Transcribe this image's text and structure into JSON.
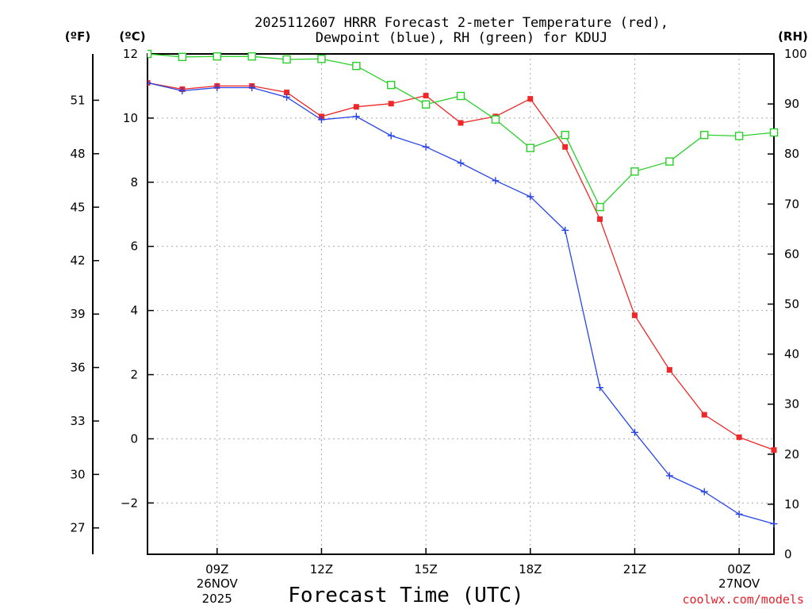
{
  "chart_data": {
    "type": "line",
    "title_line1": "2025112607 HRRR Forecast 2-meter Temperature (red),",
    "title_line2": "Dewpoint (blue), RH (green) for KDUJ",
    "unit_left_f": "(ºF)",
    "unit_left_c": "(ºC)",
    "unit_right": "(RH)",
    "xlabel": "Forecast Time (UTC)",
    "credit": "coolwx.com/models",
    "x_hours": [
      7,
      8,
      9,
      10,
      11,
      12,
      13,
      14,
      15,
      16,
      17,
      18,
      19,
      20,
      21,
      22,
      23,
      24,
      25
    ],
    "xlim": [
      7,
      25
    ],
    "x_ticks": [
      {
        "hour": 9,
        "label": "09Z",
        "date": "26NOV",
        "year": "2025"
      },
      {
        "hour": 12,
        "label": "12Z",
        "date": "",
        "year": ""
      },
      {
        "hour": 15,
        "label": "15Z",
        "date": "",
        "year": ""
      },
      {
        "hour": 18,
        "label": "18Z",
        "date": "",
        "year": ""
      },
      {
        "hour": 21,
        "label": "21Z",
        "date": "",
        "year": ""
      },
      {
        "hour": 24,
        "label": "00Z",
        "date": "27NOV",
        "year": ""
      }
    ],
    "celsius_axis": {
      "range": [
        -3.6,
        12
      ],
      "ticks": [
        12,
        10,
        8,
        6,
        4,
        2,
        0,
        -2
      ],
      "labels": [
        "12",
        "10",
        "8",
        "6",
        "4",
        "2",
        "0",
        "−2"
      ]
    },
    "fahrenheit_ticks": [
      {
        "value": 51,
        "label": "51"
      },
      {
        "value": 48,
        "label": "48"
      },
      {
        "value": 45,
        "label": "45"
      },
      {
        "value": 42,
        "label": "42"
      },
      {
        "value": 39,
        "label": "39"
      },
      {
        "value": 36,
        "label": "36"
      },
      {
        "value": 33,
        "label": "33"
      },
      {
        "value": 30,
        "label": "30"
      },
      {
        "value": 27,
        "label": "27"
      }
    ],
    "rh_axis": {
      "range": [
        0,
        100
      ],
      "ticks": [
        100,
        90,
        80,
        70,
        60,
        50,
        40,
        30,
        20,
        10,
        0
      ],
      "labels": [
        "100",
        "90",
        "80",
        "70",
        "60",
        "50",
        "40",
        "30",
        "20",
        "10",
        "0"
      ]
    },
    "series": [
      {
        "name": "Temperature",
        "axis": "celsius",
        "color": "#ee2828",
        "marker": "square-filled",
        "values": [
          11.1,
          10.9,
          11.0,
          11.0,
          10.8,
          10.05,
          10.35,
          10.45,
          10.7,
          9.85,
          10.05,
          10.6,
          9.1,
          6.85,
          3.85,
          2.15,
          0.75,
          0.05,
          -0.35
        ]
      },
      {
        "name": "Dewpoint",
        "axis": "celsius",
        "color": "#2846e8",
        "marker": "plus",
        "values": [
          11.1,
          10.85,
          10.95,
          10.95,
          10.65,
          9.95,
          10.05,
          9.45,
          9.1,
          8.6,
          8.05,
          7.55,
          6.5,
          1.6,
          0.2,
          -1.15,
          -1.65,
          -2.35,
          -2.65
        ]
      },
      {
        "name": "RH",
        "axis": "rh",
        "color": "#28d028",
        "marker": "square-open",
        "values": [
          100,
          99.4,
          99.5,
          99.5,
          98.9,
          99.0,
          97.6,
          93.8,
          89.9,
          91.6,
          86.9,
          81.2,
          83.8,
          69.4,
          76.5,
          78.5,
          83.8,
          83.6,
          84.3
        ]
      }
    ]
  }
}
